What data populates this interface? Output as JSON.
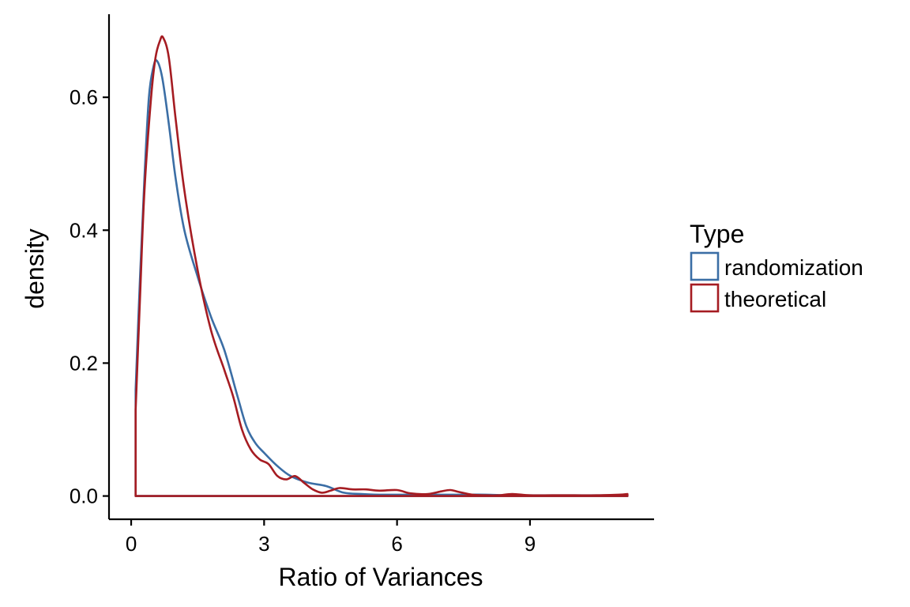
{
  "chart_data": {
    "type": "line",
    "subtype": "density",
    "title": "",
    "xlabel": "Ratio of Variances",
    "ylabel": "density",
    "xlim": [
      -0.5,
      11.8
    ],
    "ylim": [
      -0.035,
      0.725
    ],
    "x_ticks": [
      0,
      3,
      6,
      9
    ],
    "x_tick_labels": [
      "0",
      "3",
      "6",
      "9"
    ],
    "y_ticks": [
      0.0,
      0.2,
      0.4,
      0.6
    ],
    "y_tick_labels": [
      "0.0",
      "0.2",
      "0.4",
      "0.6"
    ],
    "grid": false,
    "legend": {
      "title": "Type",
      "position": "right"
    },
    "series": [
      {
        "name": "randomization",
        "color": "#3b6ea5",
        "x": [
          0.1,
          0.2,
          0.3,
          0.4,
          0.5,
          0.58,
          0.7,
          0.85,
          1.0,
          1.2,
          1.5,
          1.8,
          2.1,
          2.4,
          2.6,
          2.8,
          3.0,
          3.3,
          3.6,
          4.0,
          4.4,
          4.8,
          5.2,
          5.6,
          6.0,
          6.5,
          7.0,
          7.5,
          8.0,
          8.5,
          9.0,
          9.5,
          10.0,
          10.5,
          11.0,
          11.2
        ],
        "y": [
          0.16,
          0.33,
          0.48,
          0.6,
          0.645,
          0.655,
          0.63,
          0.56,
          0.48,
          0.4,
          0.33,
          0.27,
          0.22,
          0.15,
          0.105,
          0.08,
          0.065,
          0.045,
          0.03,
          0.02,
          0.015,
          0.005,
          0.003,
          0.002,
          0.002,
          0.002,
          0.002,
          0.002,
          0.002,
          0.001,
          0.001,
          0.001,
          0.001,
          0.001,
          0.001,
          0.001
        ]
      },
      {
        "name": "theoretical",
        "color": "#a51c22",
        "x": [
          0.1,
          0.2,
          0.3,
          0.45,
          0.55,
          0.65,
          0.72,
          0.85,
          1.0,
          1.2,
          1.5,
          1.8,
          2.1,
          2.3,
          2.5,
          2.7,
          2.9,
          3.1,
          3.3,
          3.5,
          3.7,
          3.9,
          4.1,
          4.3,
          4.5,
          4.7,
          5.0,
          5.3,
          5.6,
          6.0,
          6.3,
          6.7,
          7.0,
          7.2,
          7.4,
          7.7,
          8.0,
          8.3,
          8.6,
          9.0,
          9.5,
          10.0,
          10.5,
          11.0,
          11.2
        ],
        "y": [
          0.13,
          0.3,
          0.46,
          0.6,
          0.66,
          0.685,
          0.69,
          0.66,
          0.57,
          0.46,
          0.34,
          0.25,
          0.19,
          0.15,
          0.1,
          0.07,
          0.055,
          0.048,
          0.03,
          0.025,
          0.03,
          0.02,
          0.01,
          0.005,
          0.008,
          0.012,
          0.01,
          0.01,
          0.008,
          0.009,
          0.004,
          0.003,
          0.007,
          0.009,
          0.006,
          0.002,
          0.001,
          0.001,
          0.003,
          0.001,
          0.001,
          0.001,
          0.001,
          0.002,
          0.003
        ]
      }
    ]
  }
}
